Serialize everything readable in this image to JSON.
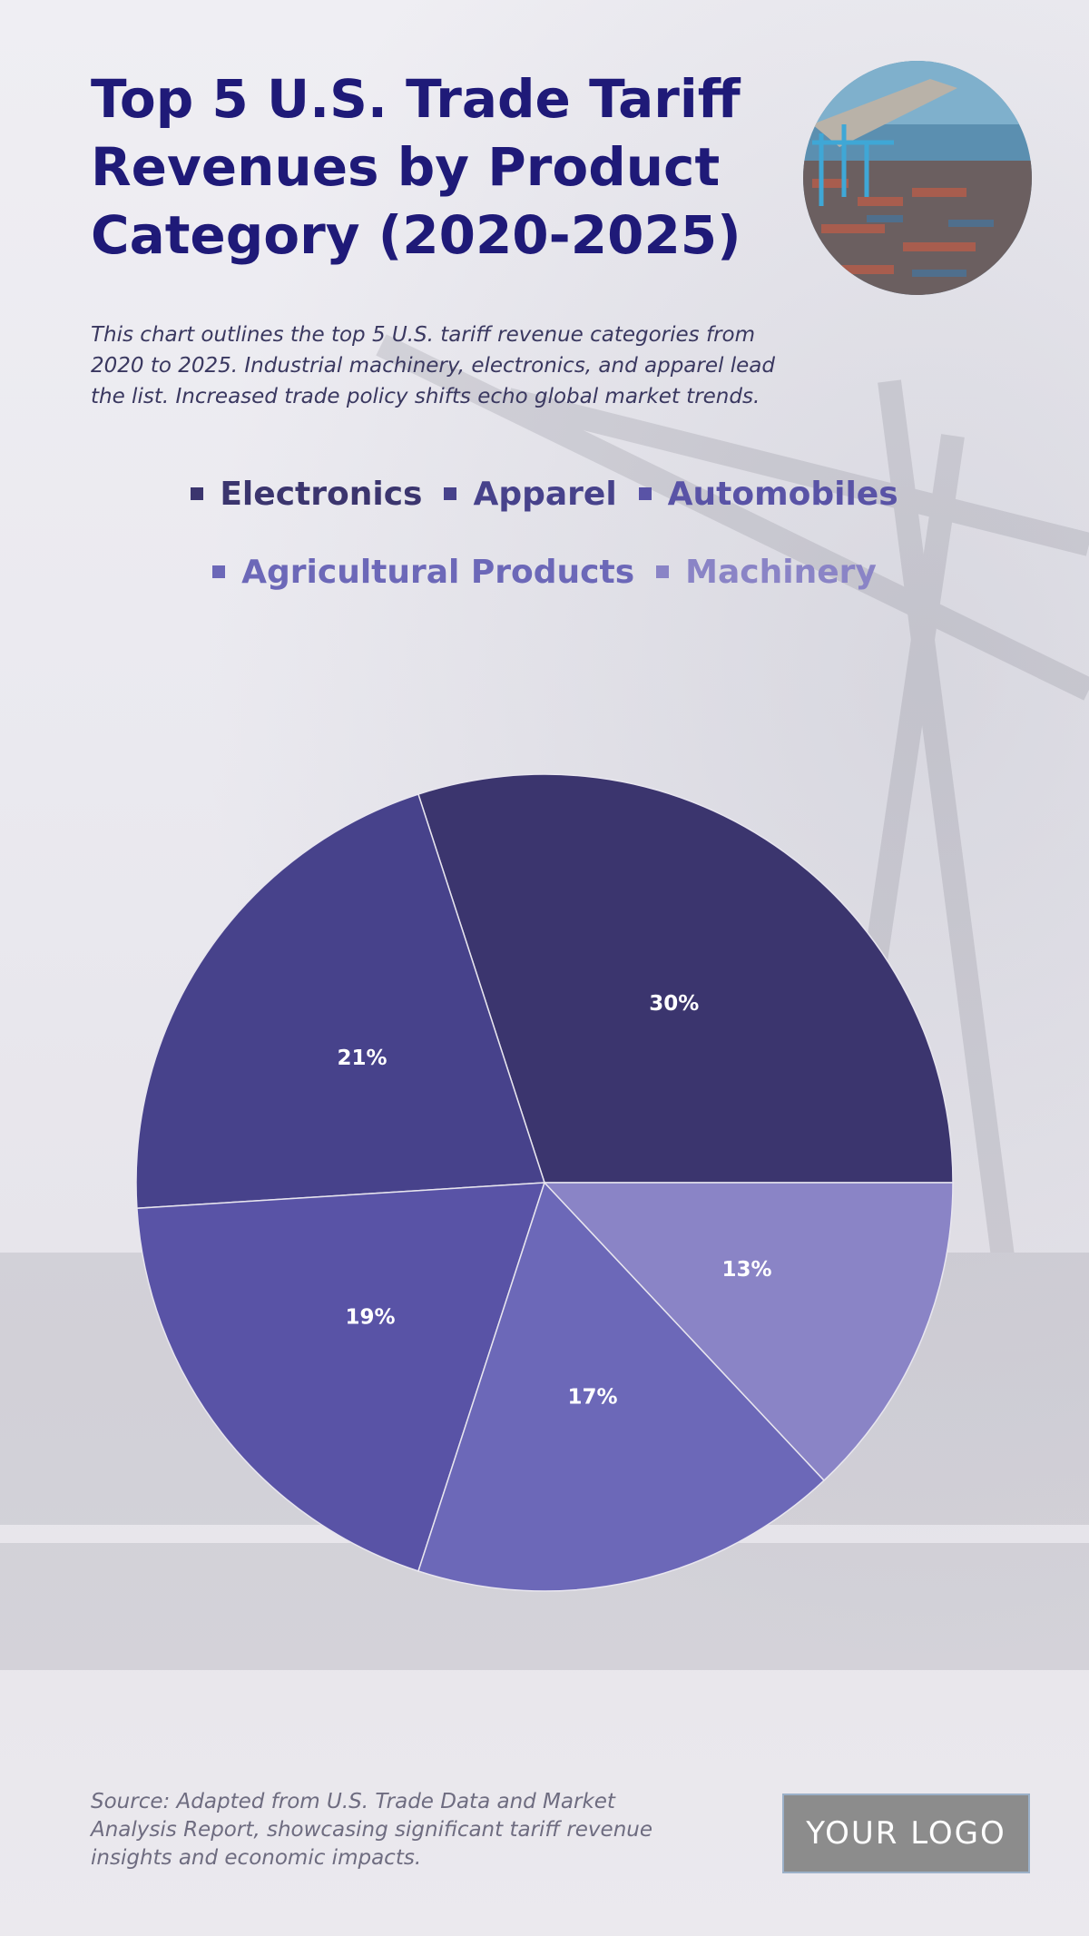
{
  "header": {
    "title": "Top 5 U.S. Trade Tariff Revenues by Product Category (2020-2025)",
    "subtitle": "This chart outlines the top 5 U.S. tariff revenue categories from 2020 to 2025. Industrial machinery, electronics, and apparel lead the list. Increased trade policy shifts echo global market trends."
  },
  "hero_image": {
    "icon": "port-container-photo"
  },
  "chart_data": {
    "type": "pie",
    "title": "Top 5 U.S. Trade Tariff Revenues by Product Category (2020-2025)",
    "legend_position": "top",
    "slices": [
      {
        "name": "Electronics",
        "value": 30,
        "label": "30%",
        "color": "#3b356e"
      },
      {
        "name": "Apparel",
        "value": 21,
        "label": "21%",
        "color": "#47428b"
      },
      {
        "name": "Automobiles",
        "value": 19,
        "label": "19%",
        "color": "#5953a6"
      },
      {
        "name": "Agricultural Products",
        "value": 17,
        "label": "17%",
        "color": "#6c68b8"
      },
      {
        "name": "Machinery",
        "value": 13,
        "label": "13%",
        "color": "#8a84c6"
      }
    ]
  },
  "footer": {
    "source": "Source: Adapted from U.S. Trade Data and Market Analysis Report, showcasing significant tariff revenue insights and economic impacts.",
    "logo_text": "YOUR LOGO"
  }
}
